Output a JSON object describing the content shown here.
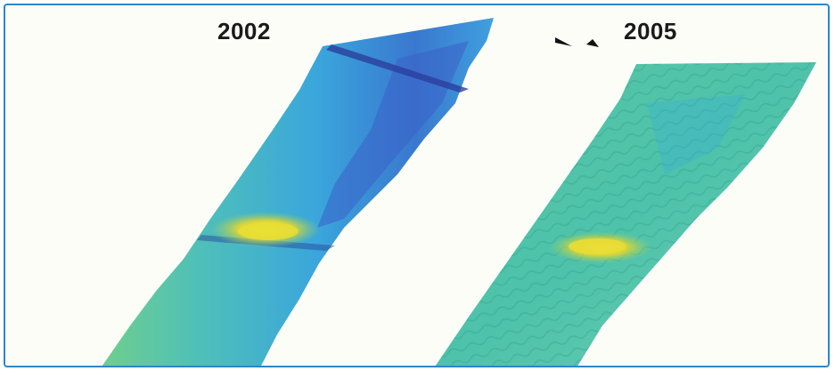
{
  "panels": [
    {
      "year_label": "2002"
    },
    {
      "year_label": "2005"
    }
  ],
  "colors": {
    "frame_border": "#2f86c8",
    "background": "#fdfdf8",
    "deep": "#2f5fc4",
    "mid": "#3fb6dc",
    "shallow": "#5ec9a0",
    "peak": "#f0e23a"
  },
  "icons": [
    "arrowhead-icon",
    "arrowhead-icon"
  ]
}
